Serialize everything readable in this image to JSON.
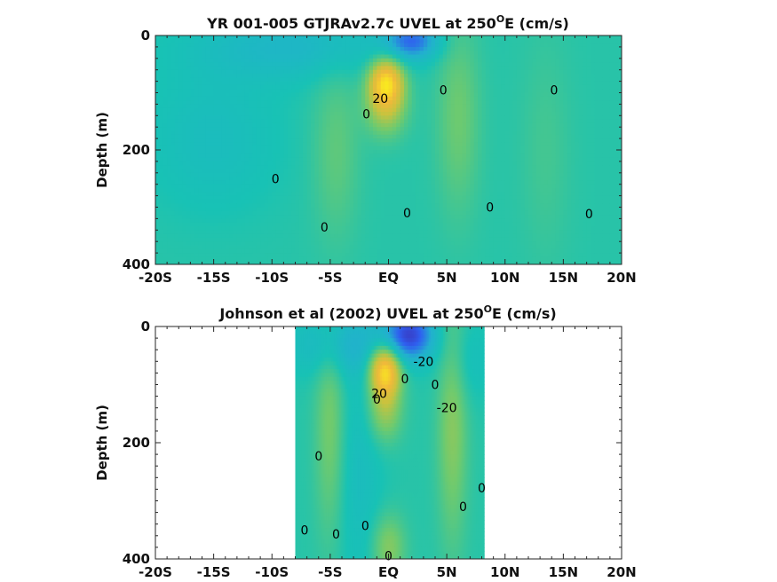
{
  "chart_data": [
    {
      "type": "heatmap",
      "title": "YR 001-005 GTJRAv2.7c UVEL at 250",
      "title_superscript": "O",
      "title_suffix": "E (cm/s)",
      "ylabel": "Depth (m)",
      "xlabel": "",
      "xlim": [
        -20,
        20
      ],
      "ylim": [
        0,
        400
      ],
      "y_reversed": true,
      "x_ticks": [
        -20,
        -15,
        -10,
        -5,
        0,
        5,
        10,
        15,
        20
      ],
      "x_tick_labels": [
        "-20S",
        "-15S",
        "-10S",
        "-5S",
        "EQ",
        "5N",
        "10N",
        "15N",
        "20N"
      ],
      "y_ticks": [
        0,
        200,
        400
      ],
      "y_tick_labels": [
        "0",
        "200",
        "400"
      ],
      "data_extent": [
        -20,
        20
      ],
      "colormap": [
        "#3e26a8",
        "#2f5ff0",
        "#22b0cf",
        "#18c2b5",
        "#6fca6e",
        "#c8c33e",
        "#f0b93a",
        "#f9e721"
      ],
      "features": [
        {
          "kind": "core",
          "x": -0.2,
          "depth": 80,
          "value": 100,
          "sx": 1.0,
          "sd": 28
        },
        {
          "kind": "core",
          "x": -0.2,
          "depth": 125,
          "value": 50,
          "sx": 1.2,
          "sd": 35
        },
        {
          "kind": "jet",
          "x": -4.5,
          "depth": 200,
          "value": 20,
          "sx": 1.4,
          "sd": 110
        },
        {
          "kind": "jet",
          "x": 6.0,
          "depth": 140,
          "value": 25,
          "sx": 1.3,
          "sd": 120
        },
        {
          "kind": "jet",
          "x": 13.5,
          "depth": 200,
          "value": 10,
          "sx": 1.5,
          "sd": 140
        },
        {
          "kind": "westward",
          "x": 2.0,
          "depth": 10,
          "value": -60,
          "sx": 1.6,
          "sd": 22
        },
        {
          "kind": "westward",
          "x": -8.0,
          "depth": 20,
          "value": -25,
          "sx": 6.0,
          "sd": 40
        },
        {
          "kind": "westward",
          "x": -15.0,
          "depth": 180,
          "value": -15,
          "sx": 4.0,
          "sd": 90
        }
      ],
      "contour_labels": [
        {
          "text": "0",
          "x": -9.7,
          "depth": 250
        },
        {
          "text": "0",
          "x": -5.5,
          "depth": 335
        },
        {
          "text": "0",
          "x": -1.9,
          "depth": 137
        },
        {
          "text": "0",
          "x": 1.6,
          "depth": 310
        },
        {
          "text": "0",
          "x": 4.7,
          "depth": 95
        },
        {
          "text": "0",
          "x": 8.7,
          "depth": 300
        },
        {
          "text": "0",
          "x": 14.2,
          "depth": 95
        },
        {
          "text": "0",
          "x": 17.2,
          "depth": 312
        },
        {
          "text": "20",
          "x": -0.7,
          "depth": 110
        }
      ]
    },
    {
      "type": "heatmap",
      "title": "Johnson et al (2002) UVEL at 250",
      "title_superscript": "O",
      "title_suffix": "E (cm/s)",
      "ylabel": "Depth (m)",
      "xlabel": "",
      "xlim": [
        -20,
        20
      ],
      "ylim": [
        0,
        400
      ],
      "y_reversed": true,
      "x_ticks": [
        -20,
        -15,
        -10,
        -5,
        0,
        5,
        10,
        15,
        20
      ],
      "x_tick_labels": [
        "-20S",
        "-15S",
        "-10S",
        "-5S",
        "EQ",
        "5N",
        "10N",
        "15N",
        "20N"
      ],
      "y_ticks": [
        0,
        200,
        400
      ],
      "y_tick_labels": [
        "0",
        "200",
        "400"
      ],
      "data_extent": [
        -8,
        8.2
      ],
      "colormap": [
        "#3e26a8",
        "#2f5ff0",
        "#22b0cf",
        "#18c2b5",
        "#6fca6e",
        "#c8c33e",
        "#f0b93a",
        "#f9e721"
      ],
      "features": [
        {
          "kind": "core",
          "x": -0.3,
          "depth": 75,
          "value": 110,
          "sx": 0.9,
          "sd": 30
        },
        {
          "kind": "core",
          "x": -0.3,
          "depth": 140,
          "value": 45,
          "sx": 1.0,
          "sd": 40
        },
        {
          "kind": "jet",
          "x": -5.0,
          "depth": 170,
          "value": 30,
          "sx": 0.9,
          "sd": 140
        },
        {
          "kind": "jet",
          "x": 5.5,
          "depth": 160,
          "value": 35,
          "sx": 0.9,
          "sd": 150
        },
        {
          "kind": "jet",
          "x": 0.0,
          "depth": 380,
          "value": 35,
          "sx": 1.0,
          "sd": 40
        },
        {
          "kind": "westward",
          "x": 1.8,
          "depth": 15,
          "value": -80,
          "sx": 1.5,
          "sd": 30
        },
        {
          "kind": "westward",
          "x": -4.0,
          "depth": 30,
          "value": -30,
          "sx": 3.0,
          "sd": 40
        },
        {
          "kind": "westward",
          "x": 6.5,
          "depth": 60,
          "value": -15,
          "sx": 1.5,
          "sd": 50
        },
        {
          "kind": "westward",
          "x": -2.5,
          "depth": 250,
          "value": -15,
          "sx": 1.5,
          "sd": 150
        }
      ],
      "contour_labels": [
        {
          "text": "0",
          "x": -6.0,
          "depth": 223
        },
        {
          "text": "0",
          "x": -7.2,
          "depth": 350
        },
        {
          "text": "0",
          "x": -4.5,
          "depth": 357
        },
        {
          "text": "0",
          "x": -2.0,
          "depth": 343
        },
        {
          "text": "0",
          "x": -1.0,
          "depth": 125
        },
        {
          "text": "0",
          "x": 1.4,
          "depth": 90
        },
        {
          "text": "0",
          "x": 4.0,
          "depth": 100
        },
        {
          "text": "0",
          "x": 6.4,
          "depth": 310
        },
        {
          "text": "0",
          "x": 8.0,
          "depth": 278
        },
        {
          "text": "0",
          "x": 0.0,
          "depth": 395
        },
        {
          "text": "-20",
          "x": 3.0,
          "depth": 60
        },
        {
          "text": "-20",
          "x": 5.0,
          "depth": 140
        },
        {
          "text": "20",
          "x": -0.8,
          "depth": 115
        }
      ]
    }
  ]
}
